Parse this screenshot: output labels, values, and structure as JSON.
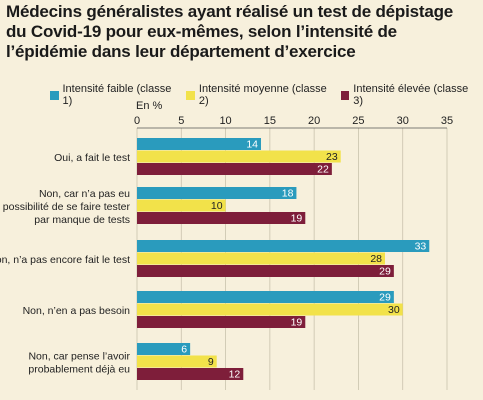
{
  "title": "Médecins généralistes ayant réalisé un test de dépistage du Covid-19 pour eux-mêmes, selon l’intensité de l’épidémie dans leur département d’exercice",
  "unit_label": "En %",
  "legend": [
    {
      "label": "Intensité faible (classe 1)",
      "color": "#2a9bbd"
    },
    {
      "label": "Intensité moyenne (classe 2)",
      "color": "#f2e24a"
    },
    {
      "label": "Intensité élevée (classe 3)",
      "color": "#7e1e3a"
    }
  ],
  "chart_data": {
    "type": "bar",
    "orientation": "horizontal",
    "title": "Médecins généralistes ayant réalisé un test de dépistage du Covid-19 pour eux-mêmes, selon l’intensité de l’épidémie dans leur département d’exercice",
    "xlabel": "En %",
    "xlim": [
      0,
      35
    ],
    "xticks": [
      0,
      5,
      10,
      15,
      20,
      25,
      30,
      35
    ],
    "grid": true,
    "legend_position": "top",
    "categories": [
      [
        "Oui, a fait le test"
      ],
      [
        "Non, car n’a pas eu",
        "la possibilité de se faire tester",
        "par manque de tests"
      ],
      [
        "Non, n’a pas encore fait le test"
      ],
      [
        "Non, n’en a pas besoin"
      ],
      [
        "Non, car pense l’avoir",
        "probablement déjà eu"
      ]
    ],
    "series": [
      {
        "name": "Intensité faible (classe 1)",
        "color": "#2a9bbd",
        "values": [
          14,
          18,
          33,
          29,
          6
        ]
      },
      {
        "name": "Intensité moyenne (classe 2)",
        "color": "#f2e24a",
        "values": [
          23,
          10,
          28,
          30,
          9
        ]
      },
      {
        "name": "Intensité élevée (classe 3)",
        "color": "#7e1e3a",
        "values": [
          22,
          19,
          29,
          19,
          12
        ]
      }
    ]
  }
}
